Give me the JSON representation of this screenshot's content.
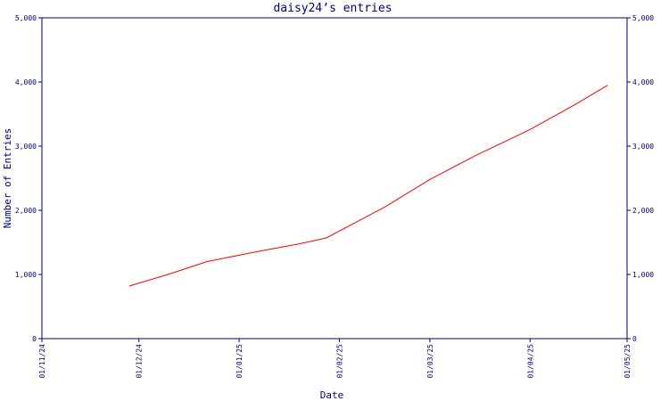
{
  "chart_data": {
    "type": "line",
    "title": "daisy24’s entries",
    "xlabel": "Date",
    "ylabel": "Number of Entries",
    "ylim": [
      0,
      5000
    ],
    "yticks": [
      {
        "value": 0,
        "label": "0"
      },
      {
        "value": 1000,
        "label": "1,000"
      },
      {
        "value": 2000,
        "label": "2,000"
      },
      {
        "value": 3000,
        "label": "3,000"
      },
      {
        "value": 4000,
        "label": "4,000"
      },
      {
        "value": 5000,
        "label": "5,000"
      }
    ],
    "xlim": [
      "2024-11-01",
      "2025-05-01"
    ],
    "xticks": [
      {
        "value": "2024-11-01",
        "label": "01/11/24"
      },
      {
        "value": "2024-12-01",
        "label": "01/12/24"
      },
      {
        "value": "2025-01-01",
        "label": "01/01/25"
      },
      {
        "value": "2025-02-01",
        "label": "01/02/25"
      },
      {
        "value": "2025-03-01",
        "label": "01/03/25"
      },
      {
        "value": "2025-04-01",
        "label": "01/04/25"
      },
      {
        "value": "2025-05-01",
        "label": "01/05/25"
      }
    ],
    "right_axis_mirror": true,
    "grid": false,
    "series": [
      {
        "color": "#ff0000",
        "x": [
          "2024-11-28",
          "2024-12-10",
          "2024-12-22",
          "2025-01-06",
          "2025-01-20",
          "2025-01-28",
          "2025-02-15",
          "2025-03-01",
          "2025-03-15",
          "2025-04-01",
          "2025-04-15",
          "2025-04-25"
        ],
        "y": [
          820,
          1000,
          1200,
          1350,
          1480,
          1570,
          2050,
          2480,
          2850,
          3260,
          3650,
          3950
        ]
      }
    ]
  }
}
